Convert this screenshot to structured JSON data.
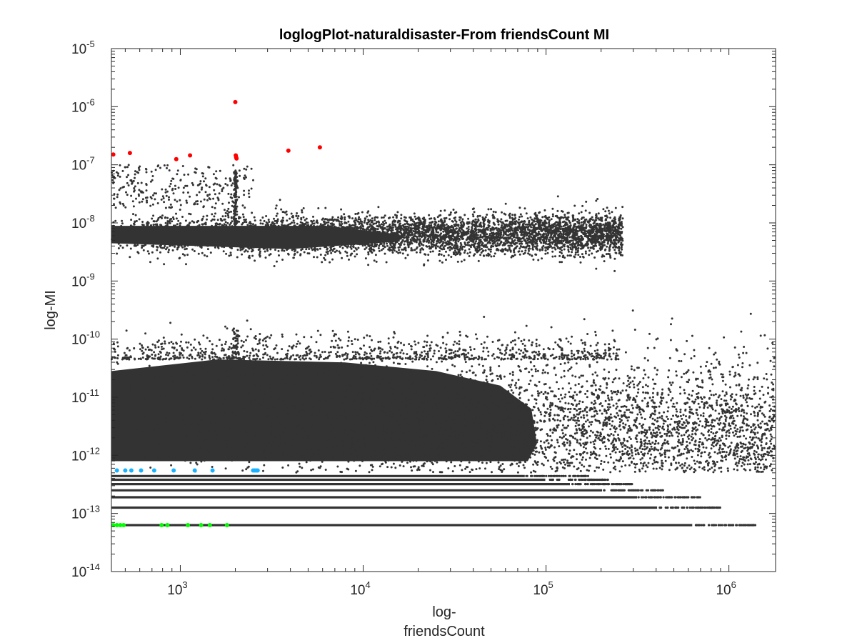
{
  "chart_data": {
    "type": "scatter",
    "title": "loglogPlot-naturaldisaster-From friendsCount MI",
    "xlabel": [
      "log-",
      "friendsCount"
    ],
    "ylabel": "log-MI",
    "x_scale": "log",
    "y_scale": "log",
    "xlim": [
      420,
      1800000
    ],
    "ylim": [
      1e-14,
      1e-05
    ],
    "grid": false,
    "x_ticks": [
      {
        "value": 1000,
        "base": "10",
        "exp": "3"
      },
      {
        "value": 10000,
        "base": "10",
        "exp": "4"
      },
      {
        "value": 100000,
        "base": "10",
        "exp": "5"
      },
      {
        "value": 1000000,
        "base": "10",
        "exp": "6"
      }
    ],
    "y_ticks": [
      {
        "value": 1e-14,
        "base": "10",
        "exp": "-14"
      },
      {
        "value": 1e-13,
        "base": "10",
        "exp": "-13"
      },
      {
        "value": 1e-12,
        "base": "10",
        "exp": "-12"
      },
      {
        "value": 1e-11,
        "base": "10",
        "exp": "-11"
      },
      {
        "value": 1e-10,
        "base": "10",
        "exp": "-10"
      },
      {
        "value": 1e-09,
        "base": "10",
        "exp": "-9"
      },
      {
        "value": 1e-08,
        "base": "10",
        "exp": "-8"
      },
      {
        "value": 1e-07,
        "base": "10",
        "exp": "-7"
      },
      {
        "value": 1e-06,
        "base": "10",
        "exp": "-6"
      },
      {
        "value": 1e-05,
        "base": "10",
        "exp": "-5"
      }
    ],
    "colors": {
      "base": "#333333",
      "high": "#ff0000",
      "low": "#1ab2ff",
      "lowest": "#00ff00"
    },
    "series": [
      {
        "color_key": "high",
        "x": [
          430,
          530,
          950,
          1130,
          2000,
          2010,
          2020,
          2030,
          3900,
          5800
        ],
        "y": [
          1.5e-07,
          1.6e-07,
          1.25e-07,
          1.45e-07,
          1.2e-06,
          1.45e-07,
          1.35e-07,
          1.28e-07,
          1.75e-07,
          2e-07
        ]
      },
      {
        "color_key": "low",
        "x": [
          450,
          500,
          540,
          610,
          720,
          920,
          1200,
          1500,
          2500,
          2550,
          2600,
          2650
        ],
        "y": [
          5.5e-13,
          5.5e-13,
          5.5e-13,
          5.5e-13,
          5.5e-13,
          5.5e-13,
          5.5e-13,
          5.5e-13,
          5.5e-13,
          5.5e-13,
          5.5e-13,
          5.5e-13
        ]
      },
      {
        "color_key": "lowest",
        "x": [
          430,
          450,
          470,
          490,
          790,
          850,
          1100,
          1300,
          1450,
          1800
        ],
        "y": [
          6.3e-14,
          6.3e-14,
          6.3e-14,
          6.3e-14,
          6.3e-14,
          6.3e-14,
          6.3e-14,
          6.3e-14,
          6.3e-14,
          6.3e-14
        ]
      }
    ],
    "clusters": [
      {
        "name": "upper-band",
        "x_range": [
          420,
          260000
        ],
        "y_center": 6e-09,
        "y_spread_decades": 0.2,
        "density": "dense"
      },
      {
        "name": "lower-mass",
        "x_range": [
          420,
          1700000
        ],
        "y_range": [
          3e-13,
          3e-10
        ],
        "density": "very-dense"
      },
      {
        "name": "quantized-rows",
        "y_values": [
          6.3e-14,
          1.26e-13,
          1.9e-13,
          2.5e-13,
          3.2e-13,
          3.8e-13,
          4.4e-13
        ],
        "x_range": [
          420,
          1400000
        ]
      }
    ]
  }
}
